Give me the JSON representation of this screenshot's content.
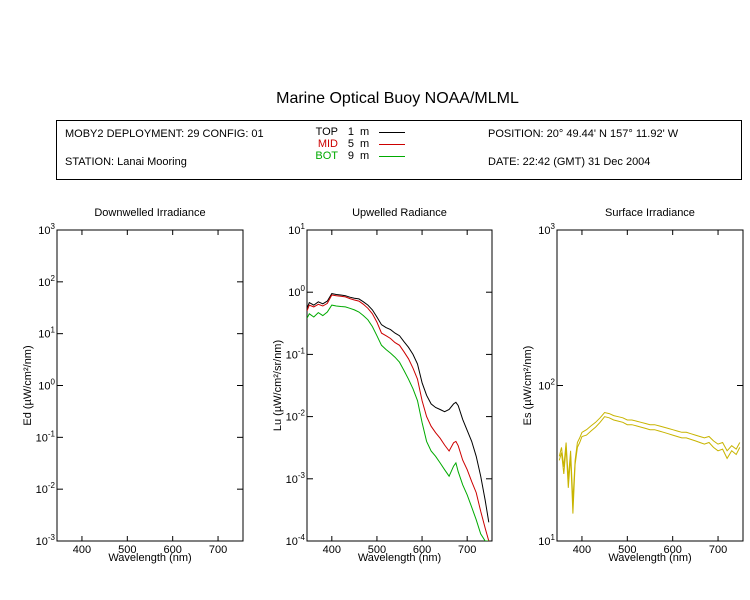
{
  "header": {
    "title": "Marine Optical Buoy NOAA/MLML",
    "deployment": "MOBY2 DEPLOYMENT: 29 CONFIG: 01",
    "station": "STATION: Lanai Mooring",
    "position": "POSITION: 20° 49.44' N   157° 11.92' W",
    "date": "DATE: 22:42 (GMT) 31 Dec 2004"
  },
  "legend": [
    {
      "label": "TOP",
      "depth": "1",
      "unit": "m",
      "color": "#000000"
    },
    {
      "label": "MID",
      "depth": "5",
      "unit": "m",
      "color": "#cc0000"
    },
    {
      "label": "BOT",
      "depth": "9",
      "unit": "m",
      "color": "#00aa00"
    }
  ],
  "chart_data": [
    {
      "type": "line",
      "title": "Downwelled Irradiance",
      "xlabel": "Wavelength (nm)",
      "ylabel": "Ed  (µW/cm²/nm)",
      "xlim": [
        345,
        755
      ],
      "ylim": [
        0.001,
        1000
      ],
      "yscale": "log",
      "xticks": [
        "400",
        "500",
        "600",
        "700"
      ],
      "yticks": [
        "10-3",
        "10-2",
        "10-1",
        "100",
        "101",
        "102",
        "103"
      ],
      "series": []
    },
    {
      "type": "line",
      "title": "Upwelled Radiance",
      "xlabel": "Wavelength (nm)",
      "ylabel": "Lu  (µW/cm²/sr/nm)",
      "xlim": [
        345,
        755
      ],
      "ylim": [
        0.0001,
        10
      ],
      "yscale": "log",
      "xticks": [
        "400",
        "500",
        "600",
        "700"
      ],
      "yticks": [
        "10-4",
        "10-3",
        "10-2",
        "10-1",
        "100",
        "101"
      ],
      "series": [
        {
          "name": "TOP",
          "color": "#000000",
          "x": [
            345,
            350,
            360,
            370,
            380,
            390,
            400,
            410,
            420,
            430,
            440,
            450,
            460,
            470,
            480,
            490,
            500,
            510,
            520,
            530,
            540,
            550,
            560,
            570,
            580,
            590,
            600,
            610,
            620,
            630,
            640,
            650,
            660,
            670,
            675,
            680,
            690,
            700,
            710,
            720,
            730,
            740,
            748
          ],
          "y": [
            0.55,
            0.68,
            0.62,
            0.7,
            0.65,
            0.72,
            0.95,
            0.92,
            0.9,
            0.88,
            0.83,
            0.8,
            0.78,
            0.7,
            0.62,
            0.52,
            0.4,
            0.3,
            0.27,
            0.25,
            0.22,
            0.2,
            0.16,
            0.13,
            0.1,
            0.07,
            0.035,
            0.022,
            0.016,
            0.014,
            0.013,
            0.012,
            0.013,
            0.016,
            0.017,
            0.015,
            0.009,
            0.006,
            0.004,
            0.0023,
            0.0011,
            0.00045,
            0.0002
          ]
        },
        {
          "name": "MID",
          "color": "#cc0000",
          "x": [
            345,
            350,
            360,
            370,
            380,
            390,
            400,
            410,
            420,
            430,
            440,
            450,
            460,
            470,
            480,
            490,
            500,
            510,
            520,
            530,
            540,
            550,
            560,
            570,
            580,
            590,
            600,
            610,
            620,
            630,
            640,
            650,
            660,
            670,
            675,
            680,
            690,
            700,
            710,
            720,
            730,
            740,
            748
          ],
          "y": [
            0.5,
            0.62,
            0.58,
            0.64,
            0.6,
            0.66,
            0.9,
            0.88,
            0.86,
            0.84,
            0.79,
            0.75,
            0.72,
            0.64,
            0.55,
            0.45,
            0.33,
            0.22,
            0.2,
            0.18,
            0.155,
            0.14,
            0.11,
            0.085,
            0.06,
            0.04,
            0.018,
            0.01,
            0.007,
            0.0055,
            0.0045,
            0.0035,
            0.0028,
            0.0038,
            0.004,
            0.0034,
            0.002,
            0.0014,
            0.0009,
            0.0006,
            0.0003,
            0.00016,
            0.0001
          ]
        },
        {
          "name": "BOT",
          "color": "#00aa00",
          "x": [
            345,
            350,
            360,
            370,
            380,
            390,
            400,
            410,
            420,
            430,
            440,
            450,
            460,
            470,
            480,
            490,
            500,
            510,
            520,
            530,
            540,
            550,
            560,
            570,
            580,
            590,
            600,
            610,
            620,
            630,
            640,
            650,
            660,
            670,
            675,
            680,
            690,
            700,
            710,
            720,
            730,
            740,
            748
          ],
          "y": [
            0.38,
            0.45,
            0.4,
            0.47,
            0.42,
            0.48,
            0.62,
            0.6,
            0.59,
            0.58,
            0.55,
            0.52,
            0.48,
            0.42,
            0.36,
            0.28,
            0.2,
            0.14,
            0.12,
            0.105,
            0.09,
            0.075,
            0.055,
            0.04,
            0.028,
            0.018,
            0.008,
            0.004,
            0.0028,
            0.0023,
            0.0018,
            0.0014,
            0.0011,
            0.0016,
            0.0018,
            0.0013,
            0.0008,
            0.00055,
            0.00035,
            0.00022,
            0.00013,
            0.0001,
            0.0001
          ]
        }
      ]
    },
    {
      "type": "line",
      "title": "Surface Irradiance",
      "xlabel": "Wavelength (nm)",
      "ylabel": "Es  (µW/cm²/nm)",
      "xlim": [
        345,
        755
      ],
      "ylim": [
        10,
        1000
      ],
      "yscale": "log",
      "xticks": [
        "400",
        "500",
        "600",
        "700"
      ],
      "yticks": [
        "101",
        "102",
        "103"
      ],
      "series": [
        {
          "name": "",
          "color": "#c8b400",
          "x": [
            350,
            355,
            360,
            365,
            370,
            375,
            380,
            385,
            390,
            395,
            400,
            410,
            420,
            430,
            440,
            450,
            460,
            470,
            480,
            490,
            500,
            510,
            520,
            530,
            540,
            550,
            560,
            570,
            580,
            590,
            600,
            610,
            620,
            630,
            640,
            650,
            660,
            670,
            680,
            690,
            700,
            710,
            720,
            730,
            740,
            748
          ],
          "y": [
            35,
            40,
            30,
            43,
            25,
            38,
            18,
            33,
            43,
            46,
            50,
            52,
            55,
            58,
            62,
            67,
            66,
            64,
            63,
            62,
            60,
            60,
            59,
            58,
            57,
            56,
            56,
            55,
            54,
            53,
            52,
            51,
            50,
            50,
            49,
            48,
            47,
            46,
            47,
            44,
            42,
            43,
            38,
            41,
            39,
            43
          ]
        },
        {
          "name": "",
          "color": "#c8b400",
          "x": [
            350,
            355,
            360,
            365,
            370,
            375,
            380,
            385,
            390,
            395,
            400,
            410,
            420,
            430,
            440,
            450,
            460,
            470,
            480,
            490,
            500,
            510,
            520,
            530,
            540,
            550,
            560,
            570,
            580,
            590,
            600,
            610,
            620,
            630,
            640,
            650,
            660,
            670,
            680,
            690,
            700,
            710,
            720,
            730,
            740,
            748
          ],
          "y": [
            33,
            37,
            27,
            40,
            22,
            35,
            15,
            31,
            40,
            43,
            47,
            48,
            51,
            54,
            58,
            63,
            62,
            60,
            59,
            58,
            56,
            56,
            55,
            54,
            53,
            52,
            52,
            51,
            50,
            49,
            48,
            47,
            46,
            46,
            45,
            44,
            43,
            42,
            43,
            40,
            38,
            39,
            34,
            38,
            36,
            40
          ]
        }
      ]
    }
  ]
}
